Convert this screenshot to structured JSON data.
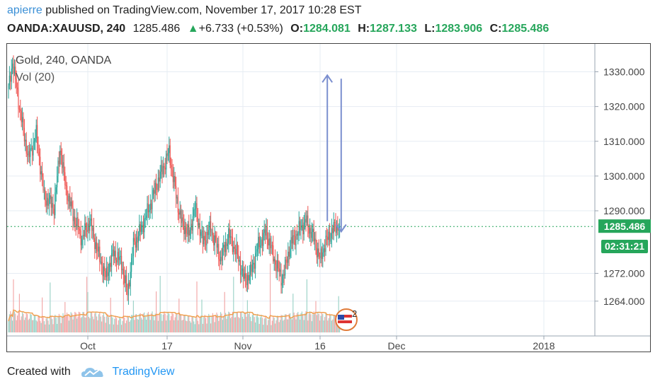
{
  "header": {
    "user": "apierre",
    "published_text": " published on TradingView.com, November 17, 2017 10:28 EST"
  },
  "quote": {
    "symbol": "OANDA:XAUUSD, 240",
    "price": "1285.486",
    "change": "+6.733 (+0.53%)",
    "open_label": "O:",
    "open": "1284.081",
    "high_label": "H:",
    "high": "1287.133",
    "low_label": "L:",
    "low": "1283.906",
    "close_label": "C:",
    "close": "1285.486"
  },
  "legend": {
    "title": "Gold, 240, OANDA",
    "indicator": "Vol (20)"
  },
  "price_label": "1285.486",
  "countdown": "02:31:21",
  "event_marker": "2",
  "footer": {
    "created_with": "Created with",
    "brand": "TradingView"
  },
  "colors": {
    "up": "#26a69a",
    "down": "#ef5350",
    "vol_up": "#9fd4c9",
    "vol_down": "#f2a9a9",
    "price_tag": "#26a65b",
    "arrows": "#7b8fcf",
    "grid": "#e6ecf3"
  },
  "chart_data": {
    "type": "candlestick",
    "title": "Gold, 240, OANDA",
    "x_ticks": [
      "Oct",
      "17",
      "Nov",
      "16",
      "Dec",
      "2018"
    ],
    "y_ticks": [
      1330,
      1320,
      1310,
      1300,
      1290,
      1272,
      1264
    ],
    "ylim": [
      1255,
      1336
    ],
    "last_price": 1285.486,
    "grid": true,
    "anchors": [
      {
        "t": 0,
        "p": 1325
      },
      {
        "t": 4,
        "p": 1333
      },
      {
        "t": 12,
        "p": 1318
      },
      {
        "t": 20,
        "p": 1305
      },
      {
        "t": 28,
        "p": 1312
      },
      {
        "t": 36,
        "p": 1294
      },
      {
        "t": 46,
        "p": 1291
      },
      {
        "t": 52,
        "p": 1308
      },
      {
        "t": 58,
        "p": 1296
      },
      {
        "t": 66,
        "p": 1288
      },
      {
        "t": 74,
        "p": 1282
      },
      {
        "t": 82,
        "p": 1287
      },
      {
        "t": 90,
        "p": 1278
      },
      {
        "t": 98,
        "p": 1271
      },
      {
        "t": 106,
        "p": 1278
      },
      {
        "t": 114,
        "p": 1275
      },
      {
        "t": 120,
        "p": 1266
      },
      {
        "t": 126,
        "p": 1280
      },
      {
        "t": 134,
        "p": 1285
      },
      {
        "t": 142,
        "p": 1291
      },
      {
        "t": 150,
        "p": 1298
      },
      {
        "t": 158,
        "p": 1304
      },
      {
        "t": 162,
        "p": 1307
      },
      {
        "t": 168,
        "p": 1296
      },
      {
        "t": 174,
        "p": 1287
      },
      {
        "t": 182,
        "p": 1283
      },
      {
        "t": 188,
        "p": 1291
      },
      {
        "t": 196,
        "p": 1281
      },
      {
        "t": 204,
        "p": 1285
      },
      {
        "t": 214,
        "p": 1276
      },
      {
        "t": 222,
        "p": 1283
      },
      {
        "t": 230,
        "p": 1278
      },
      {
        "t": 238,
        "p": 1270
      },
      {
        "t": 244,
        "p": 1272
      },
      {
        "t": 252,
        "p": 1280
      },
      {
        "t": 260,
        "p": 1284
      },
      {
        "t": 268,
        "p": 1276
      },
      {
        "t": 276,
        "p": 1270
      },
      {
        "t": 284,
        "p": 1280
      },
      {
        "t": 292,
        "p": 1284
      },
      {
        "t": 300,
        "p": 1287
      },
      {
        "t": 308,
        "p": 1282
      },
      {
        "t": 314,
        "p": 1276
      },
      {
        "t": 320,
        "p": 1281
      },
      {
        "t": 328,
        "p": 1285
      },
      {
        "t": 334,
        "p": 1286
      }
    ],
    "annotations": [
      {
        "type": "arrow-up",
        "x_index": 318,
        "from_price": 1287,
        "to_price": 1329
      },
      {
        "type": "arrow-down",
        "x_index": 332,
        "from_price": 1328,
        "to_price": 1284
      }
    ]
  }
}
